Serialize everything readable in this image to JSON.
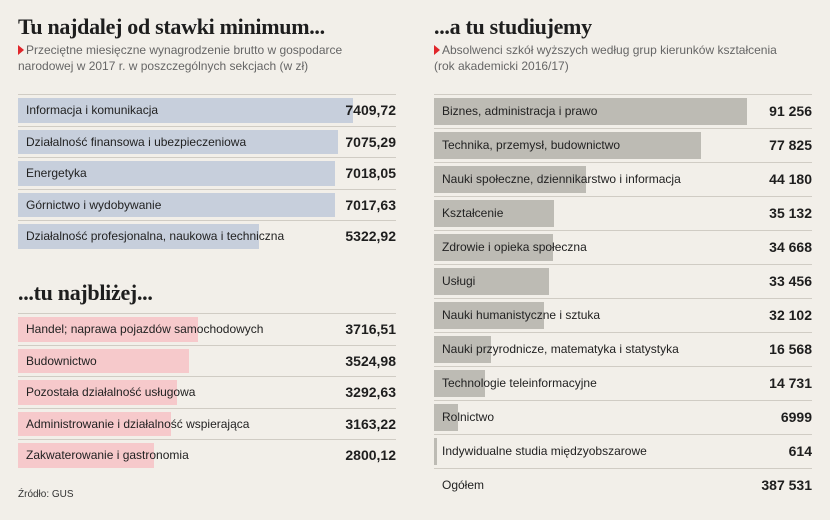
{
  "chart_data": [
    {
      "type": "bar",
      "title": "Tu najdalej od stawki minimum...",
      "subtitle": "Przeciętne miesięczne wynagrodzenie brutto w gospodarce narodowej w 2017 r. w poszczególnych sekcjach (w zł)",
      "bar_color": "#c7cfdc",
      "categories": [
        "Informacja i komunikacja",
        "Działalność finansowa i ubezpieczeniowa",
        "Energetyka",
        "Górnictwo i wydobywanie",
        "Działalność profesjonalna, naukowa i techniczna"
      ],
      "values": [
        7409.72,
        7075.29,
        7018.05,
        7017.63,
        5322.92
      ],
      "value_labels": [
        "7409,72",
        "7075,29",
        "7018,05",
        "7017,63",
        "5322,92"
      ]
    },
    {
      "type": "bar",
      "title": "...tu najbliżej...",
      "bar_color": "#f6c9cb",
      "categories": [
        "Handel; naprawa pojazdów samochodowych",
        "Budownictwo",
        "Pozostała działalność usługowa",
        "Administrowanie i działalność wspierająca",
        "Zakwaterowanie i gastronomia"
      ],
      "values": [
        3716.51,
        3524.98,
        3292.63,
        3163.22,
        2800.12
      ],
      "value_labels": [
        "3716,51",
        "3524,98",
        "3292,63",
        "3163,22",
        "2800,12"
      ]
    },
    {
      "type": "bar",
      "title": "...a tu studiujemy",
      "subtitle": "Absolwenci szkół wyższych według grup kierunków kształcenia (rok akademicki 2016/17)",
      "bar_color": "#bdbbb4",
      "categories": [
        "Biznes, administracja i prawo",
        "Technika, przemysł, budownictwo",
        "Nauki społeczne, dziennikarstwo i informacja",
        "Kształcenie",
        "Zdrowie i opieka społeczna",
        "Usługi",
        "Nauki humanistyczne i sztuka",
        "Nauki przyrodnicze, matematyka i statystyka",
        "Technologie teleinformacyjne",
        "Rolnictwo",
        "Indywidualne studia międzyobszarowe"
      ],
      "values": [
        91256,
        77825,
        44180,
        35132,
        34668,
        33456,
        32102,
        16568,
        14731,
        6999,
        614
      ],
      "value_labels": [
        "91 256",
        "77 825",
        "44 180",
        "35 132",
        "34 668",
        "33 456",
        "32 102",
        "16 568",
        "14 731",
        "6999",
        "614"
      ],
      "total_label": "Ogółem",
      "total_value": "387 531"
    }
  ],
  "source": "Źródło: GUS"
}
